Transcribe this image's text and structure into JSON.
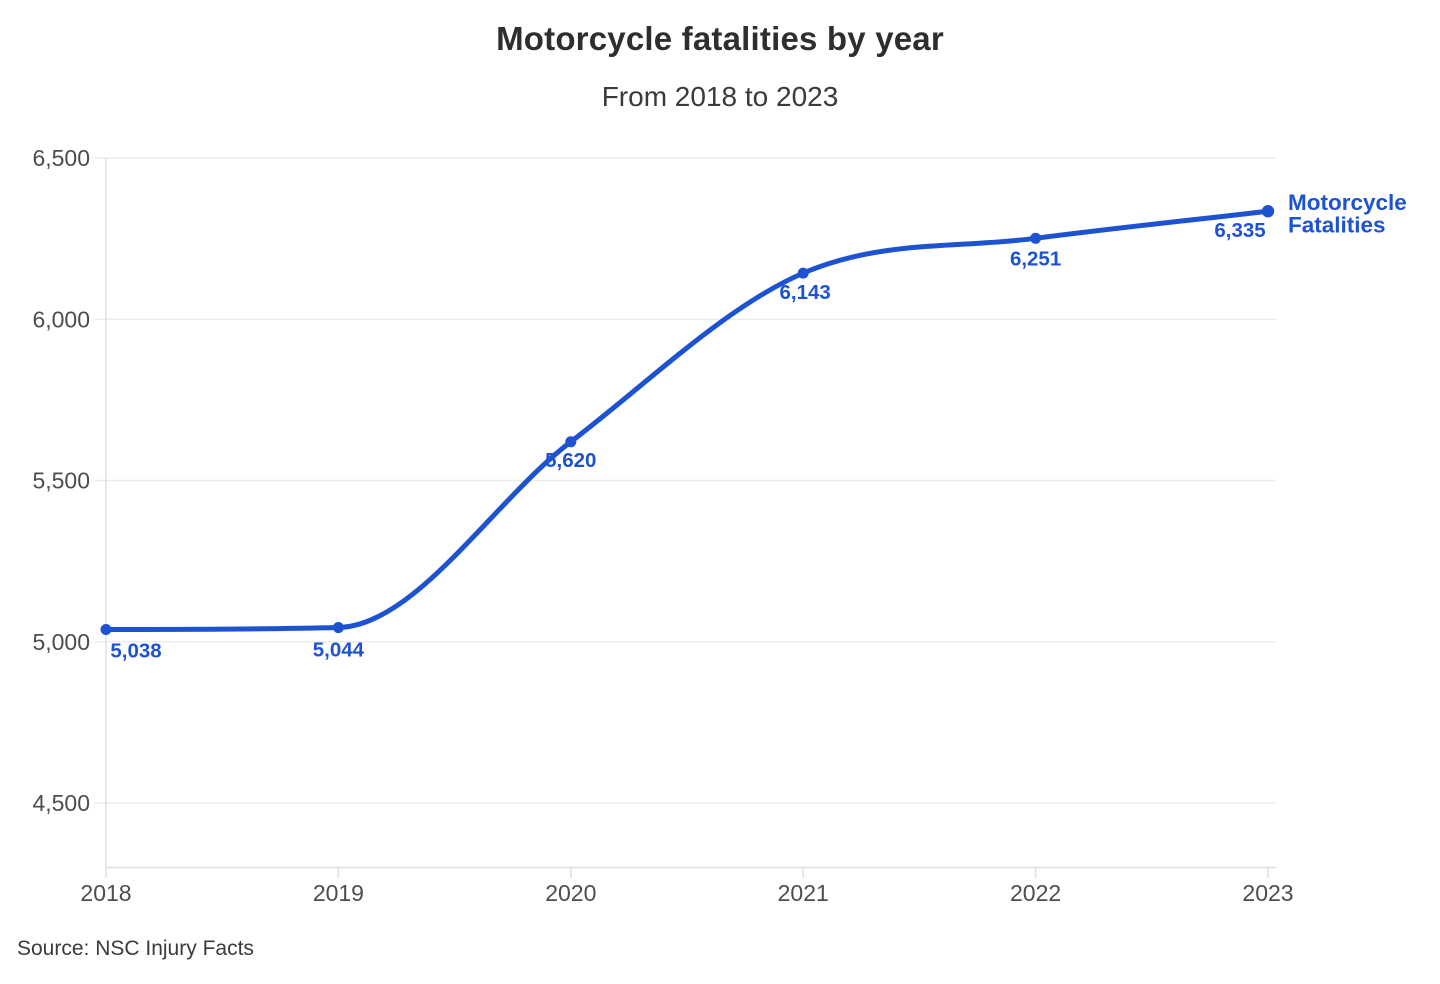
{
  "header": {
    "title": "Motorcycle fatalities by year",
    "subtitle": "From 2018 to 2023"
  },
  "footer": {
    "source": "Source: NSC Injury Facts"
  },
  "chart_data": {
    "type": "line",
    "title": "Motorcycle fatalities by year",
    "subtitle": "From 2018 to 2023",
    "x": [
      2018,
      2019,
      2020,
      2021,
      2022,
      2023
    ],
    "categories": [
      "2018",
      "2019",
      "2020",
      "2021",
      "2022",
      "2023"
    ],
    "series": [
      {
        "name": "Motorcycle Fatalities",
        "values": [
          5038,
          5044,
          5620,
          6143,
          6251,
          6335
        ],
        "labels": [
          "5,038",
          "5,044",
          "5,620",
          "6,143",
          "6,251",
          "6,335"
        ],
        "color": "#1d52d1"
      }
    ],
    "y_ticks": [
      {
        "value": 4500,
        "label": "4,500"
      },
      {
        "value": 5000,
        "label": "5,000"
      },
      {
        "value": 5500,
        "label": "5,500"
      },
      {
        "value": 6000,
        "label": "6,000"
      },
      {
        "value": 6500,
        "label": "6,500"
      }
    ],
    "ylim": [
      4300,
      6500
    ],
    "xlabel": "",
    "ylabel": "",
    "grid": "horizontal",
    "legend": {
      "position": "right-end",
      "lines": [
        "Motorcycle",
        "Fatalities"
      ]
    },
    "colors": {
      "line": "#1d52d1",
      "grid": "#ececec",
      "axis": "#e0e0e0",
      "tick_text": "#4d4d4d"
    },
    "label_offsets": {
      "dx": [
        30,
        0,
        0,
        2,
        0,
        -28
      ],
      "dy": [
        28,
        29,
        25,
        26,
        27,
        26
      ]
    }
  }
}
